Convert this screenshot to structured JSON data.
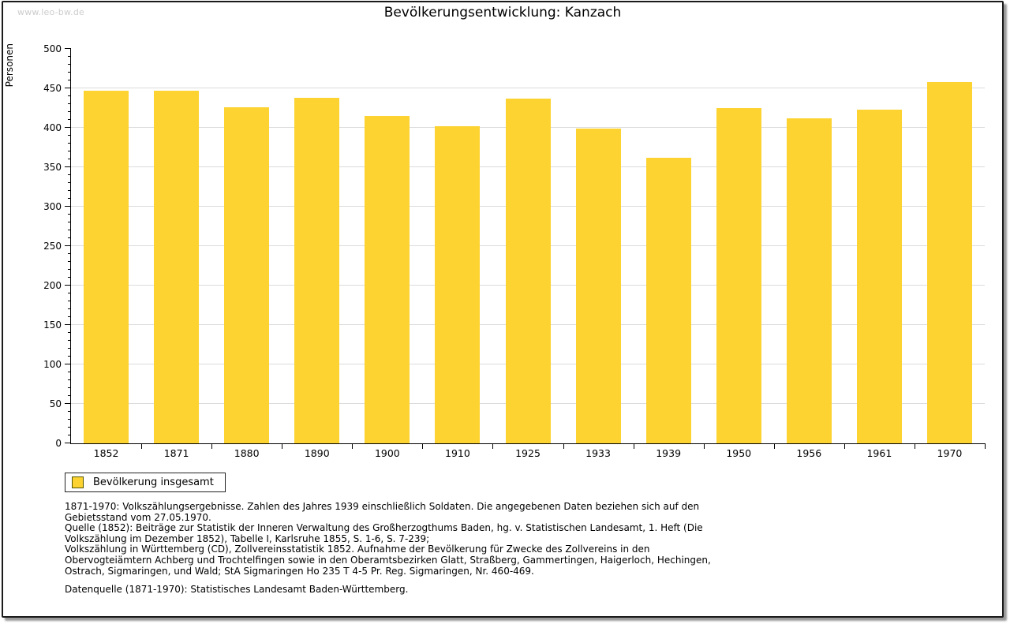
{
  "watermark": "www.leo-bw.de",
  "title": "Bevölkerungsentwicklung: Kanzach",
  "chart_data": {
    "type": "bar",
    "title": "Bevölkerungsentwicklung: Kanzach",
    "xlabel": "",
    "ylabel": "Personen",
    "categories": [
      "1852",
      "1871",
      "1880",
      "1890",
      "1900",
      "1910",
      "1925",
      "1933",
      "1939",
      "1950",
      "1956",
      "1961",
      "1970"
    ],
    "values": [
      447,
      447,
      426,
      438,
      415,
      402,
      437,
      399,
      362,
      425,
      412,
      423,
      458
    ],
    "ylim": [
      0,
      500
    ],
    "y_major_step": 50,
    "y_minor_step": 10,
    "grid": true,
    "bar_color": "#FCD330",
    "gridline_color": "#dcdcdc",
    "legend_position": "bottom-left"
  },
  "legend": {
    "label": "Bevölkerung insgesamt",
    "swatch_color": "#FCD330"
  },
  "footnotes": [
    "1871-1970: Volkszählungsergebnisse. Zahlen des Jahres 1939 einschließlich Soldaten. Die angegebenen Daten beziehen sich auf den Gebietsstand vom 27.05.1970.",
    "Quelle (1852): Beiträge zur Statistik der Inneren Verwaltung des Großherzogthums Baden, hg. v. Statistischen Landesamt, 1. Heft (Die Volkszählung im Dezember 1852), Tabelle I, Karlsruhe 1855, S. 1-6, S. 7-239;",
    "Volkszählung in Württemberg (CD), Zollvereinsstatistik 1852. Aufnahme der Bevölkerung für Zwecke des Zollvereins in den Obervogteiämtern Achberg und Trochtelfingen sowie in den Oberamtsbezirken Glatt, Straßberg, Gammertingen, Haigerloch, Hechingen, Ostrach, Sigmaringen, und Wald; StA Sigmaringen Ho 235 T 4-5 Pr. Reg. Sigmaringen, Nr. 460-469."
  ],
  "datasource": "Datenquelle (1871-1970): Statistisches Landesamt Baden-Württemberg."
}
